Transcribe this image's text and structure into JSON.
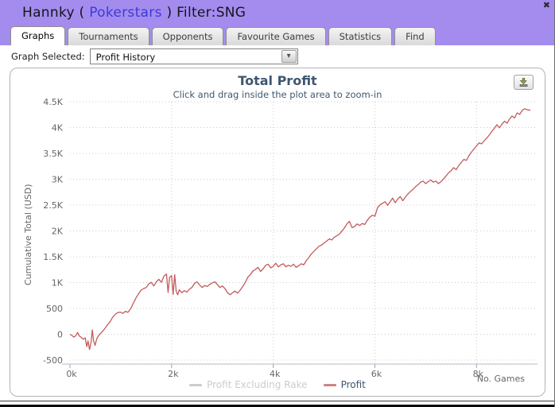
{
  "titlebar": {
    "text_before": "Hannky ( ",
    "brand": "Pokerstars",
    "text_after": " ) Filter:SNG",
    "close_glyph": "✖",
    "bg_color": "#a48cee"
  },
  "tabs": [
    {
      "label": "Graphs",
      "active": true
    },
    {
      "label": "Tournaments",
      "active": false
    },
    {
      "label": "Opponents",
      "active": false
    },
    {
      "label": "Favourite Games",
      "active": false
    },
    {
      "label": "Statistics",
      "active": false
    },
    {
      "label": "Find",
      "active": false
    }
  ],
  "toolbar": {
    "label": "Graph Selected:",
    "selected_option": "Profit History",
    "dropdown_glyph": "▾"
  },
  "chart": {
    "title": "Total Profit",
    "subtitle": "Click and drag inside the plot area to zoom-in",
    "y_axis_title": "Cumulative Total (USD)",
    "x_axis_title": "No. Games"
  },
  "legend": [
    {
      "label": "Profit Excluding Rake",
      "swatch_color": "#cccccc",
      "text_color": "#cccccc"
    },
    {
      "label": "Profit",
      "swatch_color": "#cc8585",
      "text_color": "#3e576f"
    }
  ],
  "colors": {
    "accent_purple": "#a48cee",
    "profit_line": "#c25b5b",
    "grid": "#cccccc",
    "axis_line": "#b0bac4",
    "tick_text": "#666666",
    "title_text": "#3e576f"
  },
  "chart_data": {
    "type": "line",
    "title": "Total Profit",
    "subtitle": "Click and drag inside the plot area to zoom-in",
    "xlabel": "No. Games",
    "ylabel": "Cumulative Total (USD)",
    "xlim": [
      0,
      9200
    ],
    "ylim": [
      -500,
      4500
    ],
    "grid": "dotted",
    "legend_position": "bottom-center",
    "xticks": [
      {
        "v": 0,
        "label": "0k"
      },
      {
        "v": 2000,
        "label": "2k"
      },
      {
        "v": 4000,
        "label": "4k"
      },
      {
        "v": 6000,
        "label": "6k"
      },
      {
        "v": 8000,
        "label": "8k"
      }
    ],
    "yticks": [
      {
        "v": -500,
        "label": "-500"
      },
      {
        "v": 0,
        "label": "0"
      },
      {
        "v": 500,
        "label": "500"
      },
      {
        "v": 1000,
        "label": "1K"
      },
      {
        "v": 1500,
        "label": "1.5K"
      },
      {
        "v": 2000,
        "label": "2K"
      },
      {
        "v": 2500,
        "label": "2.5K"
      },
      {
        "v": 3000,
        "label": "3K"
      },
      {
        "v": 3500,
        "label": "3.5K"
      },
      {
        "v": 4000,
        "label": "4K"
      },
      {
        "v": 4500,
        "label": "4.5K"
      }
    ],
    "series": [
      {
        "name": "Profit Excluding Rake",
        "color": "#cccccc",
        "visible": false,
        "points": []
      },
      {
        "name": "Profit",
        "color": "#c25b5b",
        "visible": true,
        "points": [
          [
            0,
            0
          ],
          [
            40,
            -25
          ],
          [
            80,
            -55
          ],
          [
            120,
            -20
          ],
          [
            150,
            35
          ],
          [
            180,
            -30
          ],
          [
            220,
            -60
          ],
          [
            260,
            -95
          ],
          [
            300,
            -70
          ],
          [
            330,
            -240
          ],
          [
            355,
            -130
          ],
          [
            385,
            -295
          ],
          [
            415,
            -160
          ],
          [
            440,
            85
          ],
          [
            465,
            -130
          ],
          [
            495,
            -215
          ],
          [
            525,
            -90
          ],
          [
            555,
            -35
          ],
          [
            590,
            5
          ],
          [
            640,
            55
          ],
          [
            690,
            115
          ],
          [
            740,
            185
          ],
          [
            790,
            245
          ],
          [
            840,
            330
          ],
          [
            890,
            385
          ],
          [
            940,
            420
          ],
          [
            990,
            430
          ],
          [
            1040,
            405
          ],
          [
            1090,
            445
          ],
          [
            1140,
            425
          ],
          [
            1200,
            505
          ],
          [
            1250,
            610
          ],
          [
            1300,
            705
          ],
          [
            1350,
            785
          ],
          [
            1400,
            855
          ],
          [
            1450,
            885
          ],
          [
            1500,
            905
          ],
          [
            1550,
            975
          ],
          [
            1600,
            1005
          ],
          [
            1650,
            935
          ],
          [
            1700,
            1015
          ],
          [
            1750,
            1065
          ],
          [
            1800,
            1005
          ],
          [
            1850,
            1125
          ],
          [
            1900,
            1165
          ],
          [
            1930,
            810
          ],
          [
            1960,
            1105
          ],
          [
            2000,
            1135
          ],
          [
            2030,
            770
          ],
          [
            2060,
            1155
          ],
          [
            2090,
            830
          ],
          [
            2120,
            765
          ],
          [
            2150,
            860
          ],
          [
            2200,
            805
          ],
          [
            2250,
            845
          ],
          [
            2300,
            815
          ],
          [
            2350,
            875
          ],
          [
            2400,
            905
          ],
          [
            2450,
            985
          ],
          [
            2500,
            1015
          ],
          [
            2550,
            955
          ],
          [
            2600,
            905
          ],
          [
            2650,
            945
          ],
          [
            2700,
            925
          ],
          [
            2750,
            965
          ],
          [
            2800,
            995
          ],
          [
            2850,
            1015
          ],
          [
            2900,
            965
          ],
          [
            2950,
            905
          ],
          [
            3000,
            935
          ],
          [
            3050,
            885
          ],
          [
            3100,
            805
          ],
          [
            3150,
            765
          ],
          [
            3200,
            805
          ],
          [
            3250,
            835
          ],
          [
            3300,
            795
          ],
          [
            3350,
            855
          ],
          [
            3400,
            925
          ],
          [
            3450,
            1005
          ],
          [
            3500,
            1105
          ],
          [
            3550,
            1155
          ],
          [
            3600,
            1225
          ],
          [
            3650,
            1255
          ],
          [
            3700,
            1295
          ],
          [
            3750,
            1215
          ],
          [
            3800,
            1265
          ],
          [
            3850,
            1335
          ],
          [
            3900,
            1355
          ],
          [
            3950,
            1285
          ],
          [
            4000,
            1315
          ],
          [
            4050,
            1375
          ],
          [
            4100,
            1305
          ],
          [
            4150,
            1345
          ],
          [
            4200,
            1365
          ],
          [
            4250,
            1305
          ],
          [
            4300,
            1335
          ],
          [
            4350,
            1315
          ],
          [
            4400,
            1355
          ],
          [
            4450,
            1295
          ],
          [
            4500,
            1325
          ],
          [
            4550,
            1365
          ],
          [
            4600,
            1345
          ],
          [
            4650,
            1425
          ],
          [
            4700,
            1485
          ],
          [
            4750,
            1555
          ],
          [
            4800,
            1605
          ],
          [
            4850,
            1655
          ],
          [
            4900,
            1705
          ],
          [
            4950,
            1725
          ],
          [
            5000,
            1765
          ],
          [
            5050,
            1805
          ],
          [
            5100,
            1845
          ],
          [
            5150,
            1825
          ],
          [
            5200,
            1875
          ],
          [
            5250,
            1905
          ],
          [
            5300,
            1935
          ],
          [
            5350,
            1995
          ],
          [
            5400,
            2055
          ],
          [
            5450,
            2135
          ],
          [
            5500,
            2185
          ],
          [
            5550,
            2065
          ],
          [
            5600,
            2085
          ],
          [
            5650,
            2135
          ],
          [
            5700,
            2105
          ],
          [
            5750,
            2145
          ],
          [
            5800,
            2125
          ],
          [
            5850,
            2205
          ],
          [
            5900,
            2265
          ],
          [
            5950,
            2305
          ],
          [
            6000,
            2285
          ],
          [
            6050,
            2445
          ],
          [
            6100,
            2505
          ],
          [
            6150,
            2535
          ],
          [
            6200,
            2565
          ],
          [
            6250,
            2495
          ],
          [
            6300,
            2565
          ],
          [
            6350,
            2635
          ],
          [
            6400,
            2545
          ],
          [
            6450,
            2615
          ],
          [
            6500,
            2665
          ],
          [
            6550,
            2585
          ],
          [
            6600,
            2655
          ],
          [
            6650,
            2715
          ],
          [
            6700,
            2765
          ],
          [
            6750,
            2805
          ],
          [
            6800,
            2855
          ],
          [
            6850,
            2895
          ],
          [
            6900,
            2945
          ],
          [
            6950,
            2965
          ],
          [
            7000,
            2915
          ],
          [
            7050,
            2955
          ],
          [
            7100,
            2985
          ],
          [
            7150,
            2945
          ],
          [
            7200,
            2965
          ],
          [
            7250,
            2915
          ],
          [
            7300,
            2955
          ],
          [
            7350,
            3005
          ],
          [
            7400,
            3065
          ],
          [
            7450,
            3125
          ],
          [
            7500,
            3165
          ],
          [
            7550,
            3225
          ],
          [
            7600,
            3185
          ],
          [
            7650,
            3265
          ],
          [
            7700,
            3325
          ],
          [
            7750,
            3385
          ],
          [
            7800,
            3365
          ],
          [
            7850,
            3455
          ],
          [
            7900,
            3525
          ],
          [
            7950,
            3585
          ],
          [
            8000,
            3645
          ],
          [
            8050,
            3705
          ],
          [
            8100,
            3685
          ],
          [
            8150,
            3745
          ],
          [
            8200,
            3795
          ],
          [
            8250,
            3855
          ],
          [
            8300,
            3925
          ],
          [
            8350,
            3985
          ],
          [
            8400,
            4055
          ],
          [
            8450,
            3995
          ],
          [
            8500,
            4065
          ],
          [
            8550,
            4125
          ],
          [
            8600,
            4085
          ],
          [
            8650,
            4165
          ],
          [
            8700,
            4225
          ],
          [
            8750,
            4185
          ],
          [
            8800,
            4285
          ],
          [
            8850,
            4255
          ],
          [
            8900,
            4335
          ],
          [
            8950,
            4365
          ],
          [
            9000,
            4345
          ],
          [
            9060,
            4335
          ]
        ]
      }
    ]
  }
}
